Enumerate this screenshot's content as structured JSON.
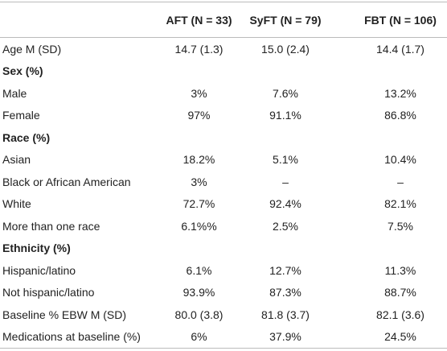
{
  "table": {
    "header": [
      "",
      "AFT (N = 33)",
      "SyFT (N = 79)",
      "FBT (N = 106)"
    ],
    "rows": [
      {
        "section": false,
        "cells": [
          "Age M (SD)",
          "14.7 (1.3)",
          "15.0 (2.4)",
          "14.4 (1.7)"
        ]
      },
      {
        "section": true,
        "cells": [
          "Sex (%)"
        ]
      },
      {
        "section": false,
        "cells": [
          "Male",
          "3%",
          "7.6%",
          "13.2%"
        ]
      },
      {
        "section": false,
        "cells": [
          "Female",
          "97%",
          "91.1%",
          "86.8%"
        ]
      },
      {
        "section": true,
        "cells": [
          "Race (%)"
        ]
      },
      {
        "section": false,
        "cells": [
          "Asian",
          "18.2%",
          "5.1%",
          "10.4%"
        ]
      },
      {
        "section": false,
        "cells": [
          "Black or African American",
          "3%",
          "–",
          "–"
        ]
      },
      {
        "section": false,
        "cells": [
          "White",
          "72.7%",
          "92.4%",
          "82.1%"
        ]
      },
      {
        "section": false,
        "cells": [
          "More than one race",
          "6.1%%",
          "2.5%",
          "7.5%"
        ]
      },
      {
        "section": true,
        "cells": [
          "Ethnicity (%)"
        ]
      },
      {
        "section": false,
        "cells": [
          "Hispanic/latino",
          "6.1%",
          "12.7%",
          "11.3%"
        ]
      },
      {
        "section": false,
        "cells": [
          "Not hispanic/latino",
          "93.9%",
          "87.3%",
          "88.7%"
        ]
      },
      {
        "section": false,
        "cells": [
          "Baseline % EBW M (SD)",
          "80.0 (3.8)",
          "81.8 (3.7)",
          "82.1 (3.6)"
        ]
      },
      {
        "section": false,
        "cells": [
          "Medications at baseline (%)",
          "6%",
          "37.9%",
          "24.5%"
        ]
      }
    ]
  }
}
